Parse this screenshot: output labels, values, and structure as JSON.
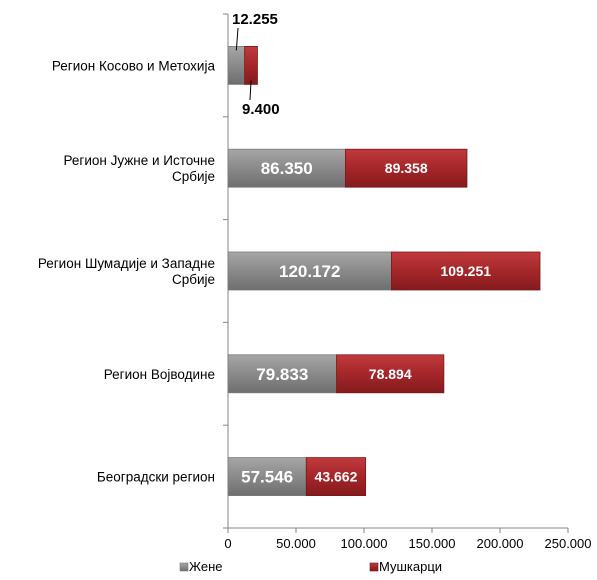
{
  "chart_data": {
    "type": "bar",
    "orientation": "horizontal",
    "stacked": true,
    "categories": [
      "Регион Косово и Метохија",
      "Регион Јужне и Источне Србије",
      "Регион Шумадије и Западне Србије",
      "Регион Војводине",
      "Београдски регион"
    ],
    "series": [
      {
        "name": "Жене",
        "color": "#8c8c8c",
        "values": [
          12255,
          86350,
          120172,
          79833,
          57546
        ],
        "labels": [
          "12.255",
          "86.350",
          "120.172",
          "79.833",
          "57.546"
        ]
      },
      {
        "name": "Мушкарци",
        "color": "#a8282b",
        "values": [
          9400,
          89358,
          109251,
          78894,
          43662
        ],
        "labels": [
          "9.400",
          "89.358",
          "109.251",
          "78.894",
          "43.662"
        ]
      }
    ],
    "xlim": [
      0,
      250000
    ],
    "x_ticks": [
      0,
      50000,
      100000,
      150000,
      200000,
      250000
    ],
    "x_tick_labels": [
      "0",
      "50.000",
      "100.000",
      "150.000",
      "200.000",
      "250.000"
    ],
    "legend_position": "bottom",
    "grid": false
  }
}
